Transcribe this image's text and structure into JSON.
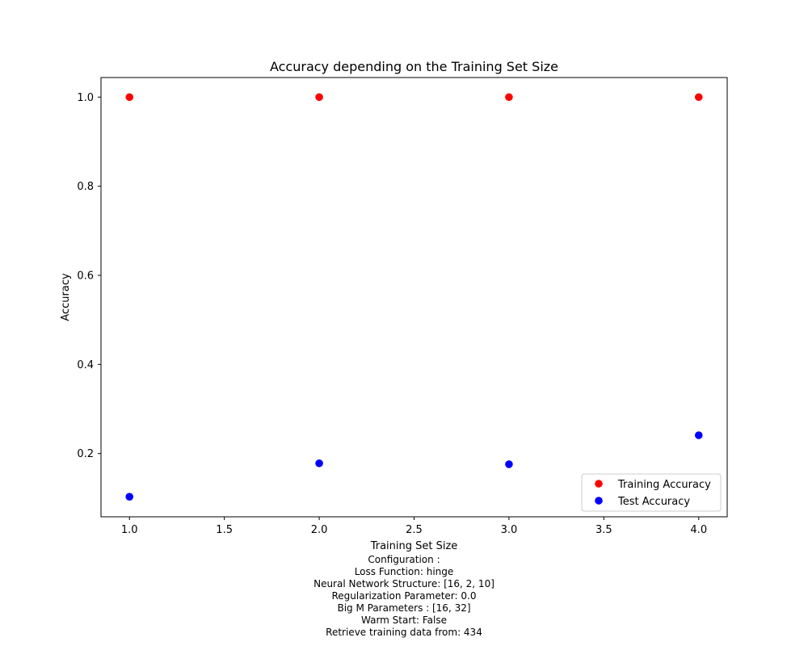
{
  "chart_data": {
    "type": "scatter",
    "title": "Accuracy depending on the Training Set Size",
    "xlabel": "Training Set Size",
    "ylabel": "Accuracy",
    "xlim": [
      0.85,
      4.15
    ],
    "ylim": [
      0.058,
      1.044
    ],
    "xticks": [
      1.0,
      1.5,
      2.0,
      2.5,
      3.0,
      3.5,
      4.0
    ],
    "xtick_labels": [
      "1.0",
      "1.5",
      "2.0",
      "2.5",
      "3.0",
      "3.5",
      "4.0"
    ],
    "yticks": [
      0.2,
      0.4,
      0.6,
      0.8,
      1.0
    ],
    "ytick_labels": [
      "0.2",
      "0.4",
      "0.6",
      "0.8",
      "1.0"
    ],
    "grid": false,
    "legend_position": "lower-right",
    "series": [
      {
        "name": "Training Accuracy",
        "color": "#ff0000",
        "x": [
          1.0,
          2.0,
          3.0,
          4.0
        ],
        "y": [
          1.0,
          1.0,
          1.0,
          1.0
        ]
      },
      {
        "name": "Test Accuracy",
        "color": "#0000ff",
        "x": [
          1.0,
          2.0,
          3.0,
          4.0
        ],
        "y": [
          0.103,
          0.178,
          0.176,
          0.241
        ]
      }
    ]
  },
  "caption": [
    "Configuration :",
    "Loss Function: hinge",
    "Neural Network Structure: [16, 2, 10]",
    "Regularization Parameter: 0.0",
    "Big M Parameters : [16, 32]",
    "Warm Start: False",
    "Retrieve training data from: 434"
  ]
}
